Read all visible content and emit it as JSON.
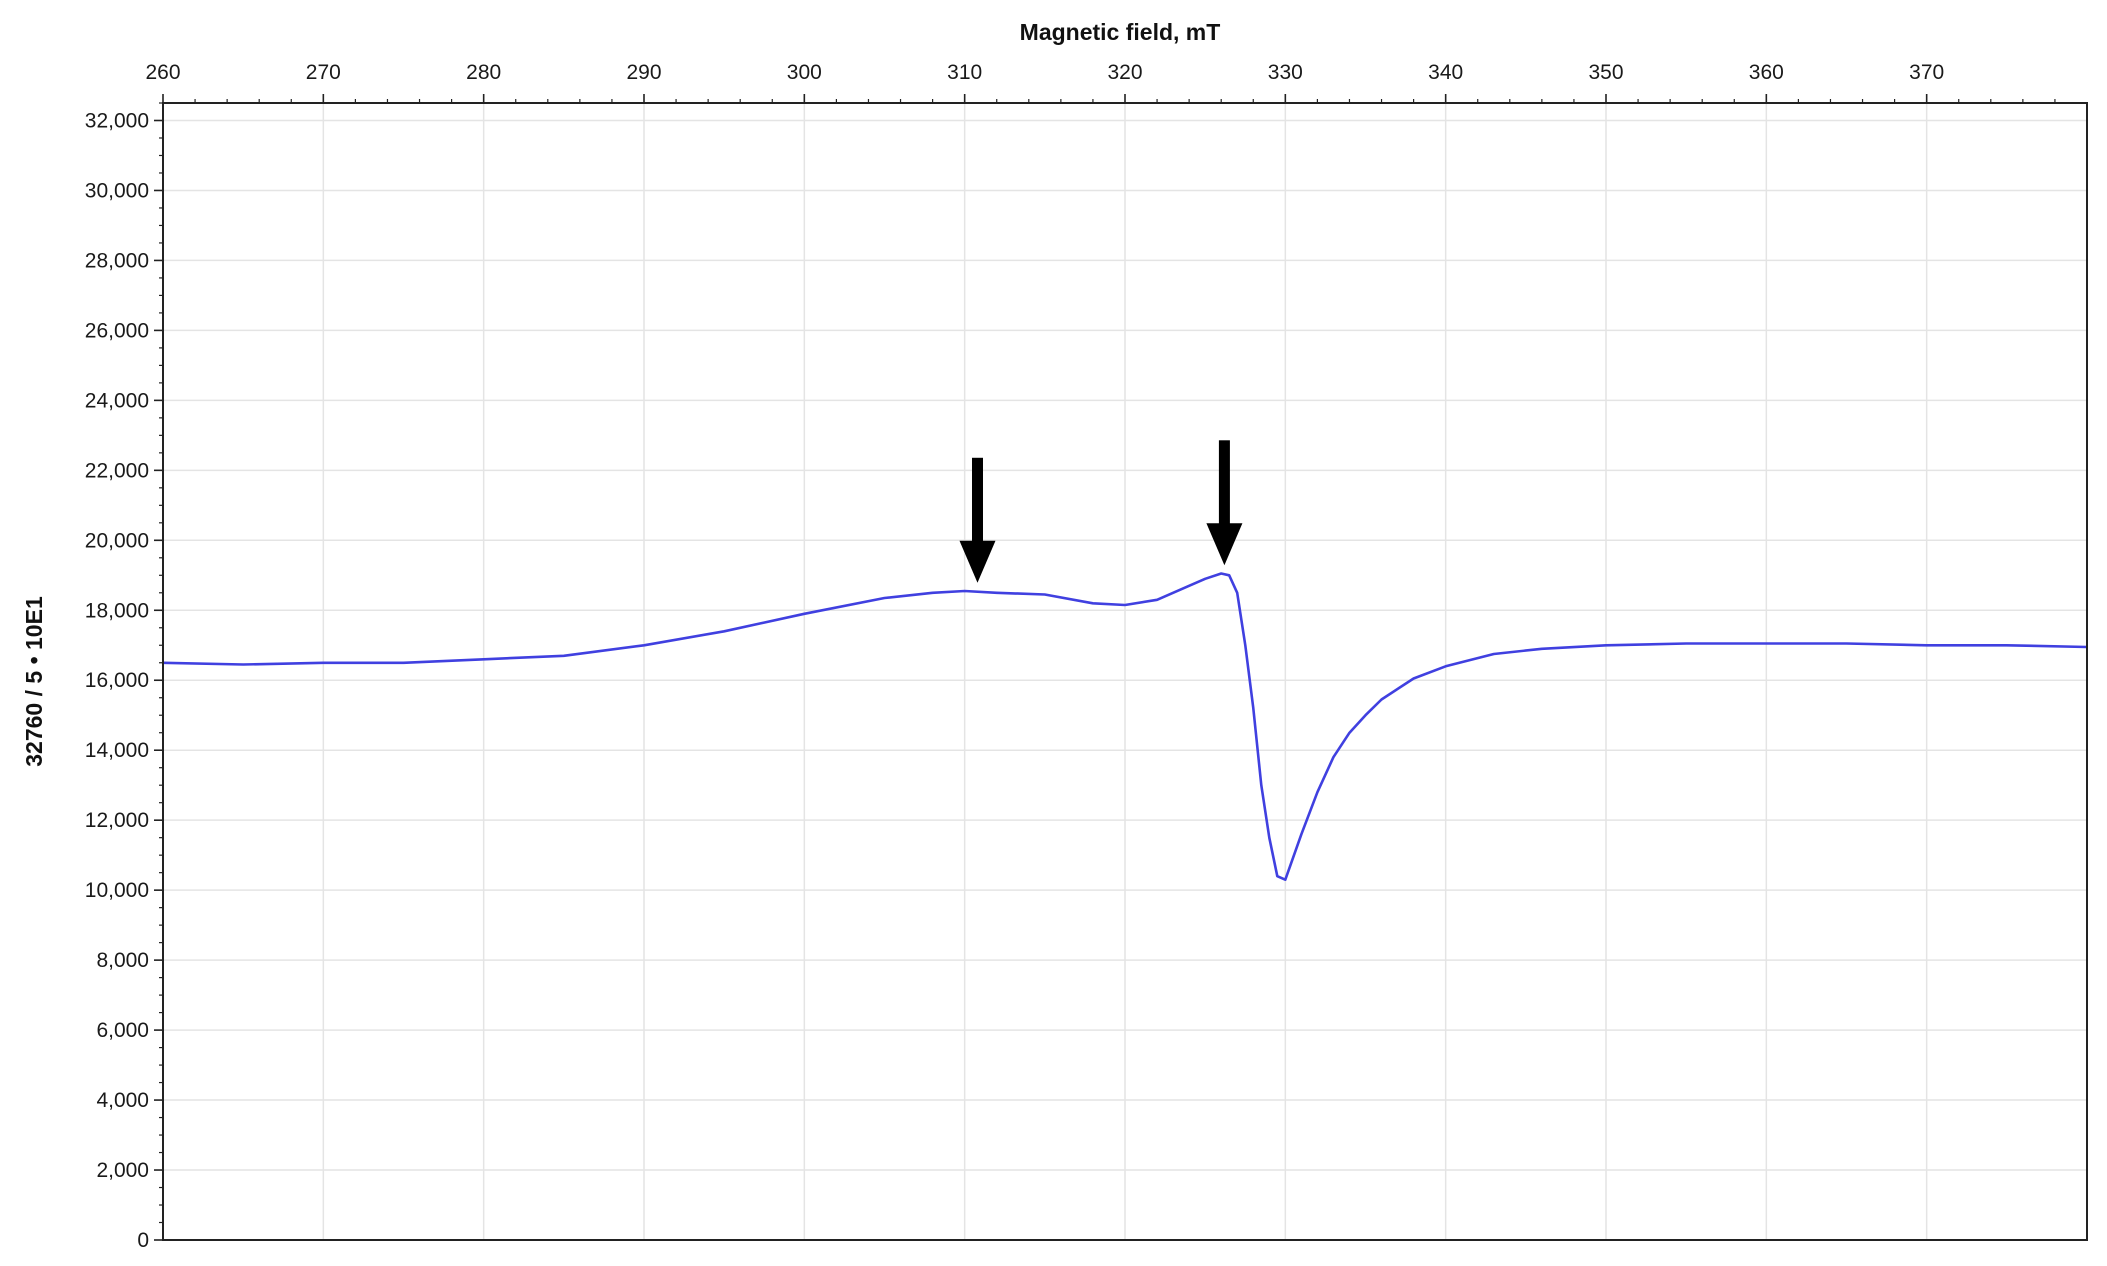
{
  "chart_data": {
    "type": "line",
    "title": "",
    "xlabel": "Magnetic field, mT",
    "ylabel": "32760 / 5 • 10E1",
    "xlim": [
      260,
      380
    ],
    "ylim": [
      0,
      32500
    ],
    "x_axis_position": "top",
    "grid": true,
    "legend": "none",
    "xticks": [
      260,
      270,
      280,
      290,
      300,
      310,
      320,
      330,
      340,
      350,
      360,
      370
    ],
    "xtick_labels": [
      "260",
      "270",
      "280",
      "290",
      "300",
      "310",
      "320",
      "330",
      "340",
      "350",
      "360",
      "370"
    ],
    "yticks": [
      0,
      2000,
      4000,
      6000,
      8000,
      10000,
      12000,
      14000,
      16000,
      18000,
      20000,
      22000,
      24000,
      26000,
      28000,
      30000,
      32000
    ],
    "ytick_labels": [
      "0",
      "2,000",
      "4,000",
      "6,000",
      "8,000",
      "10,000",
      "12,000",
      "14,000",
      "16,000",
      "18,000",
      "20,000",
      "22,000",
      "24,000",
      "26,000",
      "28,000",
      "30,000",
      "32,000"
    ],
    "series": [
      {
        "color": "#4040e0",
        "x": [
          260,
          265,
          270,
          275,
          280,
          285,
          290,
          295,
          300,
          305,
          308,
          310,
          312,
          315,
          318,
          320,
          322,
          324,
          325,
          326,
          326.5,
          327,
          327.5,
          328,
          328.5,
          329,
          329.5,
          330,
          331,
          332,
          333,
          334,
          335,
          336,
          338,
          340,
          343,
          346,
          350,
          355,
          360,
          365,
          370,
          375,
          380
        ],
        "y": [
          16500,
          16450,
          16500,
          16500,
          16600,
          16700,
          17000,
          17400,
          17900,
          18350,
          18500,
          18550,
          18500,
          18450,
          18200,
          18150,
          18300,
          18700,
          18900,
          19050,
          19000,
          18500,
          17000,
          15200,
          13000,
          11500,
          10400,
          10300,
          11600,
          12800,
          13800,
          14500,
          15000,
          15450,
          16050,
          16400,
          16750,
          16900,
          17000,
          17050,
          17050,
          17050,
          17000,
          17000,
          16950
        ]
      }
    ],
    "annotations": [
      {
        "type": "arrow",
        "x": 310.8,
        "y": 18500,
        "direction": "down"
      },
      {
        "type": "arrow",
        "x": 326.2,
        "y": 19000,
        "direction": "down"
      }
    ]
  },
  "colors": {
    "series": "#4040e0",
    "arrow": "#000000",
    "grid": "#e4e4e4"
  }
}
